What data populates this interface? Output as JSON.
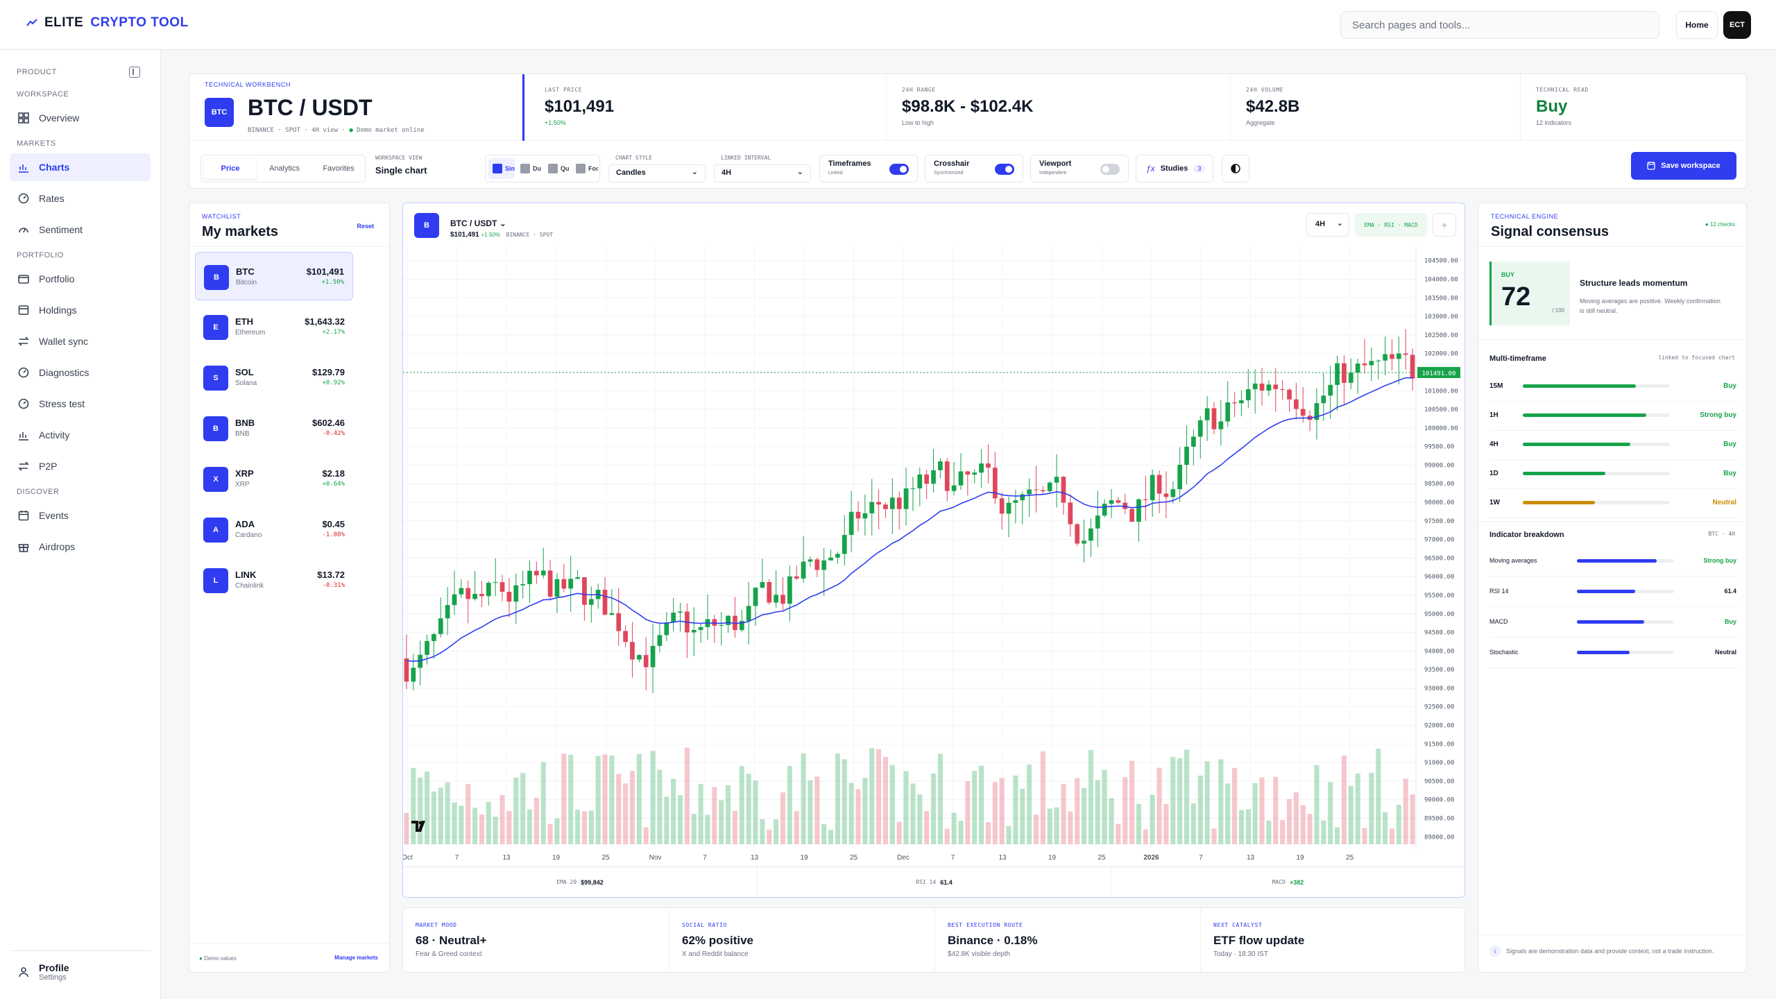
{
  "brand": {
    "part1": "ELITE",
    "part2": "CRYPTO TOOL"
  },
  "topbar": {
    "search_placeholder": "Search pages and tools...",
    "home_label": "Home",
    "avatar_initials": "ECT"
  },
  "sidebar": {
    "top_section": "PRODUCT",
    "sections": [
      {
        "title": "WORKSPACE",
        "items": [
          {
            "label": "Overview",
            "icon": "grid-icon"
          }
        ]
      },
      {
        "title": "MARKETS",
        "items": [
          {
            "label": "Charts",
            "icon": "chart-icon",
            "active": true
          },
          {
            "label": "Rates",
            "icon": "gauge-icon"
          },
          {
            "label": "Sentiment",
            "icon": "arc-icon"
          }
        ]
      },
      {
        "title": "PORTFOLIO",
        "items": [
          {
            "label": "Portfolio",
            "icon": "wallet-icon"
          },
          {
            "label": "Holdings",
            "icon": "box-icon"
          },
          {
            "label": "Wallet sync",
            "icon": "swap-icon"
          },
          {
            "label": "Diagnostics",
            "icon": "gauge-icon"
          },
          {
            "label": "Stress test",
            "icon": "gauge-icon"
          },
          {
            "label": "Activity",
            "icon": "chart-icon"
          },
          {
            "label": "P2P",
            "icon": "swap-icon"
          }
        ]
      },
      {
        "title": "DISCOVER",
        "items": [
          {
            "label": "Events",
            "icon": "calendar-icon"
          },
          {
            "label": "Airdrops",
            "icon": "gift-icon"
          }
        ]
      }
    ],
    "profile": {
      "name": "Profile",
      "sub": "Settings"
    }
  },
  "header": {
    "eyebrow": "TECHNICAL WORKBENCH",
    "pair_badge": "BTC",
    "pair": "BTC / USDT",
    "meta": "BINANCE · SPOT · 4H view ·",
    "status": "Demo market online",
    "kpis": [
      {
        "label": "LAST PRICE",
        "value": "$101,491",
        "sub": "+1.50%",
        "sub_color": "#16a34a"
      },
      {
        "label": "24H RANGE",
        "value": "$98.8K - $102.4K",
        "sub": "Low to high"
      },
      {
        "label": "24H VOLUME",
        "value": "$42.8B",
        "sub": "Aggregate"
      },
      {
        "label": "TECHNICAL READ",
        "value": "Buy",
        "sub": "12 indicators",
        "value_color": "#15803d"
      }
    ],
    "tabs": [
      "Price",
      "Analytics",
      "Favorites"
    ],
    "active_tab": "Price",
    "workspace_view": {
      "label": "WORKSPACE VIEW",
      "value": "Single chart"
    },
    "layout_buttons": [
      "Sin",
      "Du",
      "Qu",
      "Focu"
    ],
    "chart_style": {
      "label": "CHART STYLE",
      "value": "Candles"
    },
    "linked_interval": {
      "label": "LINKED INTERVAL",
      "value": "4H"
    },
    "toggles": [
      {
        "title": "Timeframes",
        "sub": "Linked",
        "on": true
      },
      {
        "title": "Crosshair",
        "sub": "Synchronized",
        "on": true
      },
      {
        "title": "Viewport",
        "sub": "Independent",
        "on": false
      }
    ],
    "studies": {
      "label": "Studies",
      "count": "3"
    },
    "save_label": "Save workspace"
  },
  "watchlist": {
    "eyebrow": "WATCHLIST",
    "title": "My markets",
    "reset": "Reset",
    "items": [
      {
        "badge": "B",
        "symbol": "BTC",
        "name": "Bitcoin",
        "price": "$101,491",
        "change": "+1.50%",
        "up": true
      },
      {
        "badge": "E",
        "symbol": "ETH",
        "name": "Ethereum",
        "price": "$1,643.32",
        "change": "+2.17%",
        "up": true
      },
      {
        "badge": "S",
        "symbol": "SOL",
        "name": "Solana",
        "price": "$129.79",
        "change": "+0.92%",
        "up": true
      },
      {
        "badge": "B",
        "symbol": "BNB",
        "name": "BNB",
        "price": "$602.46",
        "change": "-0.42%",
        "up": false
      },
      {
        "badge": "X",
        "symbol": "XRP",
        "name": "XRP",
        "price": "$2.18",
        "change": "+0.64%",
        "up": true
      },
      {
        "badge": "A",
        "symbol": "ADA",
        "name": "Cardano",
        "price": "$0.45",
        "change": "-1.08%",
        "up": false
      },
      {
        "badge": "L",
        "symbol": "LINK",
        "name": "Chainlink",
        "price": "$13.72",
        "change": "-0.31%",
        "up": false
      }
    ],
    "footer_note": "Demo values",
    "footer_link": "Manage markets"
  },
  "chart": {
    "badge": "B",
    "pair": "BTC / USDT",
    "price": "$101,491",
    "change": "+1.50%",
    "venue": "BINANCE · SPOT",
    "interval": "4H",
    "studies_pill": "EMA · RSI · MACD",
    "price_tag": "101491.00",
    "y_ticks": [
      "104500.00",
      "104000.00",
      "103500.00",
      "103000.00",
      "102500.00",
      "102000.00",
      "101500.00",
      "101000.00",
      "100500.00",
      "100000.00",
      "99500.00",
      "99000.00",
      "98500.00",
      "98000.00",
      "97500.00",
      "97000.00",
      "96500.00",
      "96000.00",
      "95500.00",
      "95000.00",
      "94500.00",
      "94000.00",
      "93500.00",
      "93000.00",
      "92500.00",
      "92000.00",
      "91500.00",
      "91000.00",
      "90500.00",
      "90000.00",
      "89500.00",
      "89000.00"
    ],
    "x_ticks": [
      "Oct",
      "7",
      "13",
      "19",
      "25",
      "Nov",
      "7",
      "13",
      "19",
      "25",
      "Dec",
      "7",
      "13",
      "19",
      "25",
      "2026",
      "7",
      "13",
      "19",
      "25"
    ],
    "footer": [
      {
        "label": "EMA 20",
        "value": "$99,842"
      },
      {
        "label": "RSI 14",
        "value": "61.4"
      },
      {
        "label": "MACD",
        "value": "+382"
      }
    ]
  },
  "chart_data": {
    "type": "candlestick",
    "y_range": [
      88800,
      104700
    ],
    "last_price": 101491,
    "series": [
      {
        "name": "EMA 20",
        "color": "#2f3cf0"
      }
    ],
    "colors": {
      "up": "#16a34a",
      "down": "#e0475b"
    }
  },
  "signal": {
    "eyebrow": "TECHNICAL ENGINE",
    "title": "Signal consensus",
    "checks": "12 checks",
    "score_label": "BUY",
    "score": "72",
    "score_max": "/ 100",
    "headline": "Structure leads momentum",
    "body": "Moving averages are positive. Weekly confirmation is still neutral.",
    "mtf_title": "Multi-timeframe",
    "mtf_note": "linked to focused chart",
    "timeframes": [
      {
        "tf": "15M",
        "fill": 0.77,
        "verdict": "Buy",
        "color": "#16a34a"
      },
      {
        "tf": "1H",
        "fill": 0.84,
        "verdict": "Strong buy",
        "color": "#16a34a"
      },
      {
        "tf": "4H",
        "fill": 0.73,
        "verdict": "Buy",
        "color": "#16a34a"
      },
      {
        "tf": "1D",
        "fill": 0.56,
        "verdict": "Buy",
        "color": "#16a34a"
      },
      {
        "tf": "1W",
        "fill": 0.49,
        "verdict": "Neutral",
        "color": "#ca8a04"
      }
    ],
    "ib_title": "Indicator breakdown",
    "ib_note": "BTC · 4H",
    "indicators": [
      {
        "name": "Moving averages",
        "fill": 0.82,
        "verdict": "Strong buy",
        "color": "#16a34a"
      },
      {
        "name": "RSI 14",
        "fill": 0.6,
        "verdict": "61.4",
        "color": "#111827"
      },
      {
        "name": "MACD",
        "fill": 0.69,
        "verdict": "Buy",
        "color": "#16a34a"
      },
      {
        "name": "Stochastic",
        "fill": 0.54,
        "verdict": "Neutral",
        "color": "#111827"
      }
    ],
    "disclaimer": "Signals are demonstration data and provide context, not a trade instruction."
  },
  "bottom": [
    {
      "label": "MARKET MOOD",
      "value": "68 · Neutral+",
      "sub": "Fear & Greed context"
    },
    {
      "label": "SOCIAL RATIO",
      "value": "62% positive",
      "sub": "X and Reddit balance"
    },
    {
      "label": "BEST EXECUTION ROUTE",
      "value": "Binance · 0.18%",
      "sub": "$42.8K visible depth"
    },
    {
      "label": "NEXT CATALYST",
      "value": "ETF flow update",
      "sub": "Today · 18:30 IST"
    }
  ]
}
